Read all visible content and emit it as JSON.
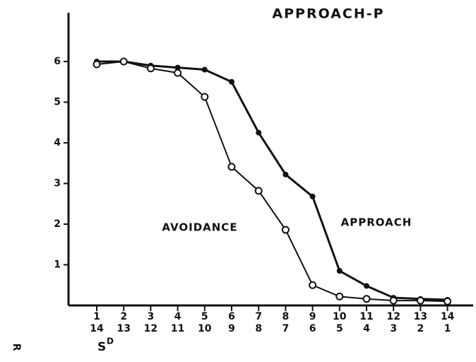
{
  "chart_data": {
    "type": "line",
    "title": "APPROACH-P",
    "categories": [
      "1",
      "2",
      "3",
      "4",
      "5",
      "6",
      "7",
      "8",
      "9",
      "10",
      "11",
      "12",
      "13",
      "14"
    ],
    "categories2": [
      "14",
      "13",
      "12",
      "11",
      "10",
      "9",
      "8",
      "7",
      "6",
      "5",
      "4",
      "3",
      "2",
      "1"
    ],
    "series": [
      {
        "name": "APPROACH",
        "color": "#111",
        "marker": "filled",
        "values": [
          6.0,
          6.0,
          5.9,
          5.85,
          5.8,
          5.5,
          4.25,
          3.22,
          2.68,
          0.85,
          0.48,
          0.19,
          0.16,
          0.14
        ]
      },
      {
        "name": "AVOIDANCE",
        "color": "#111",
        "marker": "open",
        "values": [
          5.93,
          6.0,
          5.83,
          5.72,
          5.13,
          3.41,
          2.82,
          1.86,
          0.5,
          0.22,
          0.16,
          0.12,
          0.12,
          0.1
        ]
      }
    ],
    "ylim": [
      0,
      7.2
    ],
    "yticks": [
      1,
      2,
      3,
      4,
      5,
      6
    ],
    "x_label": "S",
    "x_label_sup": "D",
    "y_label": "R"
  }
}
